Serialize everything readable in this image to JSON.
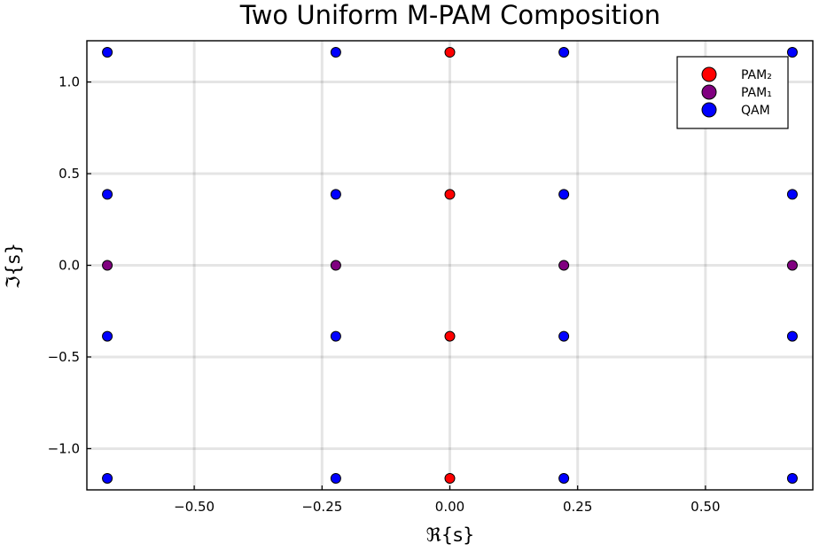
{
  "chart_data": {
    "type": "scatter",
    "title": "Two Uniform M-PAM Composition",
    "xlabel": "ℜ{s}",
    "ylabel": "ℑ{s}",
    "xlim": [
      -0.71,
      0.71
    ],
    "ylim": [
      -1.225,
      1.225
    ],
    "xticks": [
      -0.5,
      -0.25,
      0.0,
      0.25,
      0.5
    ],
    "xtick_labels": [
      "−0.50",
      "−0.25",
      "0.00",
      "0.25",
      "0.50"
    ],
    "yticks": [
      -1.0,
      -0.5,
      0.0,
      0.5,
      1.0
    ],
    "ytick_labels": [
      "−1.0",
      "−0.5",
      "0.0",
      "0.5",
      "1.0"
    ],
    "grid": true,
    "legend_position": "top-right",
    "series": [
      {
        "name": "PAM₂",
        "color": "#ff0000",
        "points": [
          [
            0.0,
            1.162
          ],
          [
            0.0,
            0.387
          ],
          [
            0.0,
            -0.387
          ],
          [
            0.0,
            -1.162
          ]
        ]
      },
      {
        "name": "PAM₁",
        "color": "#800080",
        "points": [
          [
            -0.67,
            0.0
          ],
          [
            -0.223,
            0.0
          ],
          [
            0.223,
            0.0
          ],
          [
            0.67,
            0.0
          ]
        ]
      },
      {
        "name": "QAM",
        "color": "#0000ff",
        "points": [
          [
            -0.67,
            1.162
          ],
          [
            -0.223,
            1.162
          ],
          [
            0.223,
            1.162
          ],
          [
            0.67,
            1.162
          ],
          [
            -0.67,
            0.387
          ],
          [
            -0.223,
            0.387
          ],
          [
            0.223,
            0.387
          ],
          [
            0.67,
            0.387
          ],
          [
            -0.67,
            -0.387
          ],
          [
            -0.223,
            -0.387
          ],
          [
            0.223,
            -0.387
          ],
          [
            0.67,
            -0.387
          ],
          [
            -0.67,
            -1.162
          ],
          [
            -0.223,
            -1.162
          ],
          [
            0.223,
            -1.162
          ],
          [
            0.67,
            -1.162
          ]
        ]
      }
    ]
  }
}
